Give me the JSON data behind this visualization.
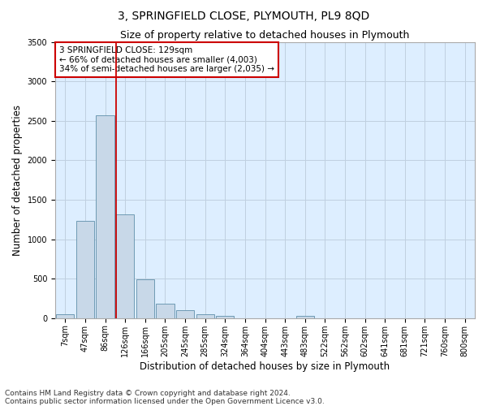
{
  "title": "3, SPRINGFIELD CLOSE, PLYMOUTH, PL9 8QD",
  "subtitle": "Size of property relative to detached houses in Plymouth",
  "xlabel": "Distribution of detached houses by size in Plymouth",
  "ylabel": "Number of detached properties",
  "categories": [
    "7sqm",
    "47sqm",
    "86sqm",
    "126sqm",
    "166sqm",
    "205sqm",
    "245sqm",
    "285sqm",
    "324sqm",
    "364sqm",
    "404sqm",
    "443sqm",
    "483sqm",
    "522sqm",
    "562sqm",
    "602sqm",
    "641sqm",
    "681sqm",
    "721sqm",
    "760sqm",
    "800sqm"
  ],
  "bar_heights": [
    50,
    1230,
    2570,
    1320,
    490,
    185,
    100,
    50,
    30,
    0,
    0,
    0,
    25,
    0,
    0,
    0,
    0,
    0,
    0,
    0,
    0
  ],
  "bar_color": "#c8d8e8",
  "bar_edge_color": "#5f8faa",
  "vline_color": "#cc0000",
  "annotation_text": "3 SPRINGFIELD CLOSE: 129sqm\n← 66% of detached houses are smaller (4,003)\n34% of semi-detached houses are larger (2,035) →",
  "annotation_box_color": "#ffffff",
  "annotation_box_edge": "#cc0000",
  "ylim": [
    0,
    3500
  ],
  "yticks": [
    0,
    500,
    1000,
    1500,
    2000,
    2500,
    3000,
    3500
  ],
  "footer_line1": "Contains HM Land Registry data © Crown copyright and database right 2024.",
  "footer_line2": "Contains public sector information licensed under the Open Government Licence v3.0.",
  "background_color": "#ffffff",
  "plot_bg_color": "#ddeeff",
  "grid_color": "#c0d0e0",
  "title_fontsize": 10,
  "subtitle_fontsize": 9,
  "label_fontsize": 8.5,
  "tick_fontsize": 7,
  "footer_fontsize": 6.5,
  "ann_fontsize": 7.5
}
